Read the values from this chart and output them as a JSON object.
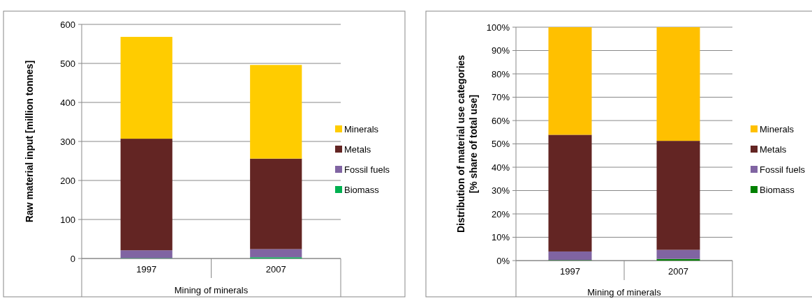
{
  "chart_data": [
    {
      "type": "bar",
      "stacked": true,
      "categories": [
        "1997",
        "2007"
      ],
      "xlabel": "Mining of minerals",
      "ylabel": "Raw material input [million tonnes]",
      "ylim": [
        0,
        600
      ],
      "yticks": [
        0,
        100,
        200,
        300,
        400,
        500,
        600
      ],
      "grid": "y",
      "legend": "right",
      "series": [
        {
          "name": "Biomass",
          "color": "#00b050",
          "values": [
            1,
            3
          ]
        },
        {
          "name": "Fossil fuels",
          "color": "#8064a2",
          "values": [
            20,
            21
          ]
        },
        {
          "name": "Metals",
          "color": "#632523",
          "values": [
            286,
            232
          ]
        },
        {
          "name": "Minerals",
          "color": "#ffcc00",
          "values": [
            261,
            240
          ]
        }
      ]
    },
    {
      "type": "bar",
      "stacked": true,
      "categories": [
        "1997",
        "2007"
      ],
      "xlabel": "Mining of minerals",
      "ylabel": "Distribution of material use categories\n[% share of total use]",
      "ylim": [
        0,
        100
      ],
      "yticks": [
        {
          "value": 0,
          "label": "0%"
        },
        {
          "value": 10,
          "label": "10%"
        },
        {
          "value": 20,
          "label": "20%"
        },
        {
          "value": 30,
          "label": "30%"
        },
        {
          "value": 40,
          "label": "40%"
        },
        {
          "value": 50,
          "label": "50%"
        },
        {
          "value": 60,
          "label": "60%"
        },
        {
          "value": 70,
          "label": "70%"
        },
        {
          "value": 80,
          "label": "80%"
        },
        {
          "value": 90,
          "label": "90%"
        },
        {
          "value": 100,
          "label": "100%"
        }
      ],
      "grid": "y",
      "legend": "right",
      "series": [
        {
          "name": "Biomass",
          "color": "#008000",
          "values": [
            0.2,
            0.7
          ]
        },
        {
          "name": "Fossil fuels",
          "color": "#8064a2",
          "values": [
            3.7,
            3.9
          ]
        },
        {
          "name": "Metals",
          "color": "#632523",
          "values": [
            50,
            46.7
          ]
        },
        {
          "name": "Minerals",
          "color": "#ffc000",
          "values": [
            46.1,
            48.7
          ]
        }
      ]
    }
  ]
}
